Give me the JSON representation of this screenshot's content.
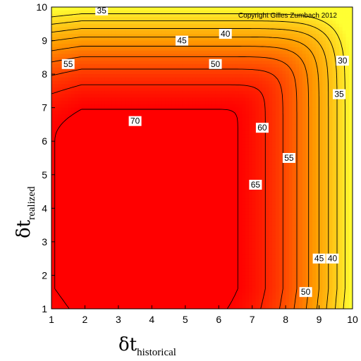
{
  "chart_data": {
    "type": "heatmap",
    "subtype": "filled-contour",
    "xlim": [
      1,
      10
    ],
    "ylim": [
      1,
      10
    ],
    "x_ticks": [
      "1",
      "2",
      "3",
      "4",
      "5",
      "6",
      "7",
      "8",
      "9",
      "10"
    ],
    "y_ticks": [
      "1",
      "2",
      "3",
      "4",
      "5",
      "6",
      "7",
      "8",
      "9",
      "10"
    ],
    "xlabel": {
      "symbol": "δt",
      "subscript": "historical"
    },
    "ylabel": {
      "symbol": "δt",
      "subscript": "realized"
    },
    "colormap": {
      "low_color": "#ffff33",
      "mid_color": "#ff9900",
      "high_color": "#ff0000",
      "low_value": 25,
      "high_value": 70
    },
    "contour_levels": [
      30,
      35,
      40,
      45,
      50,
      55,
      60,
      65,
      70
    ],
    "contour_labels": [
      {
        "text": "35",
        "x": 2.5,
        "y": 9.9
      },
      {
        "text": "40",
        "x": 6.2,
        "y": 9.2
      },
      {
        "text": "45",
        "x": 4.9,
        "y": 9.0
      },
      {
        "text": "50",
        "x": 5.9,
        "y": 8.3
      },
      {
        "text": "55",
        "x": 1.5,
        "y": 8.3
      },
      {
        "text": "30",
        "x": 9.7,
        "y": 8.4
      },
      {
        "text": "35",
        "x": 9.6,
        "y": 7.4
      },
      {
        "text": "70",
        "x": 3.5,
        "y": 6.6
      },
      {
        "text": "60",
        "x": 7.3,
        "y": 6.4
      },
      {
        "text": "55",
        "x": 8.1,
        "y": 5.5
      },
      {
        "text": "65",
        "x": 7.1,
        "y": 4.7
      },
      {
        "text": "45",
        "x": 9.0,
        "y": 2.5
      },
      {
        "text": "40",
        "x": 9.4,
        "y": 2.5
      },
      {
        "text": "50",
        "x": 8.6,
        "y": 1.5
      }
    ],
    "annotation": "Copyright Gilles Zumbach 2012"
  }
}
